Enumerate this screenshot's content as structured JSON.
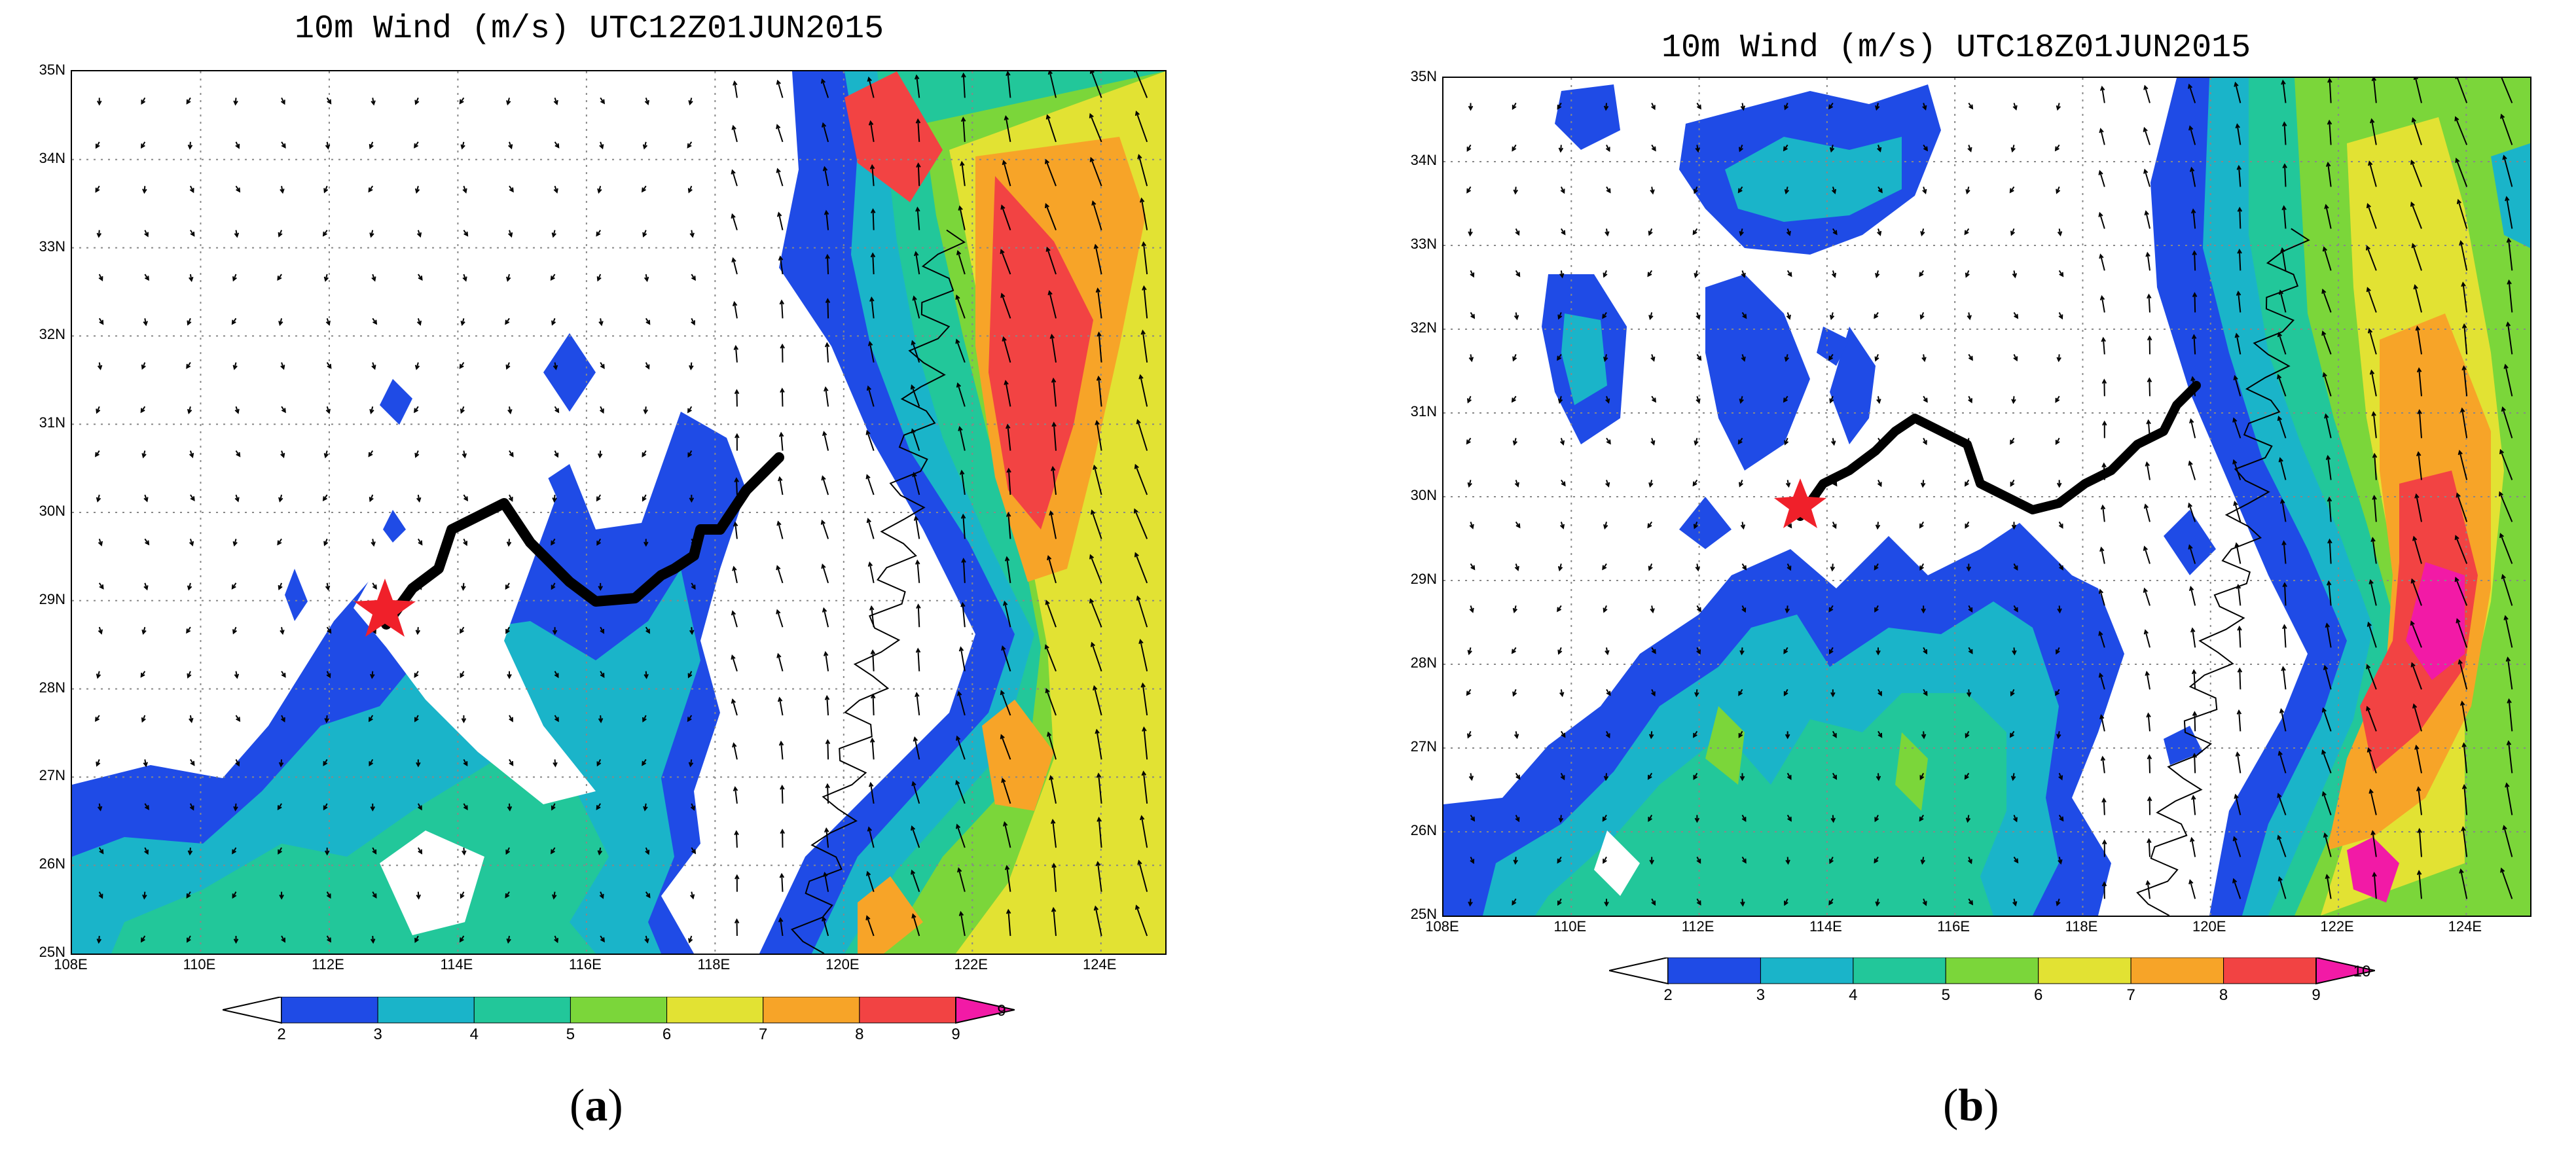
{
  "colors": {
    "lt2": "#ffffff",
    "c2_3": "#1f4be6",
    "c3_4": "#1ab4c9",
    "c4_5": "#22c79a",
    "c5_6": "#7bd63a",
    "c6_7": "#e2e233",
    "c7_8": "#f7a428",
    "c8_9": "#f24343",
    "gt9": "#f21aa6",
    "track": "#000000",
    "star": "#f0202a"
  },
  "panels": [
    {
      "title": "10m Wind (m/s) UTC12Z01JUN2015",
      "letter_open": "(",
      "letter": "a",
      "letter_close": ")",
      "lat_labels": [
        "35N",
        "34N",
        "33N",
        "32N",
        "31N",
        "30N",
        "29N",
        "28N",
        "27N",
        "26N",
        "25N"
      ],
      "lon_labels": [
        "108E",
        "110E",
        "112E",
        "114E",
        "116E",
        "118E",
        "120E",
        "122E",
        "124E"
      ],
      "colorbar_labels": [
        "2",
        "3",
        "4",
        "5",
        "6",
        "7",
        "8",
        "9"
      ],
      "colorbar_end_label": "9",
      "icons": [
        "star-icon"
      ]
    },
    {
      "title": "10m Wind (m/s) UTC18Z01JUN2015",
      "letter_open": "(",
      "letter": "b",
      "letter_close": ")",
      "lat_labels": [
        "35N",
        "34N",
        "33N",
        "32N",
        "31N",
        "30N",
        "29N",
        "28N",
        "27N",
        "26N",
        "25N"
      ],
      "lon_labels": [
        "108E",
        "110E",
        "112E",
        "114E",
        "116E",
        "118E",
        "120E",
        "122E",
        "124E"
      ],
      "colorbar_labels": [
        "2",
        "3",
        "4",
        "5",
        "6",
        "7",
        "8",
        "9"
      ],
      "colorbar_end_label": "10",
      "icons": [
        "star-icon"
      ]
    }
  ]
}
